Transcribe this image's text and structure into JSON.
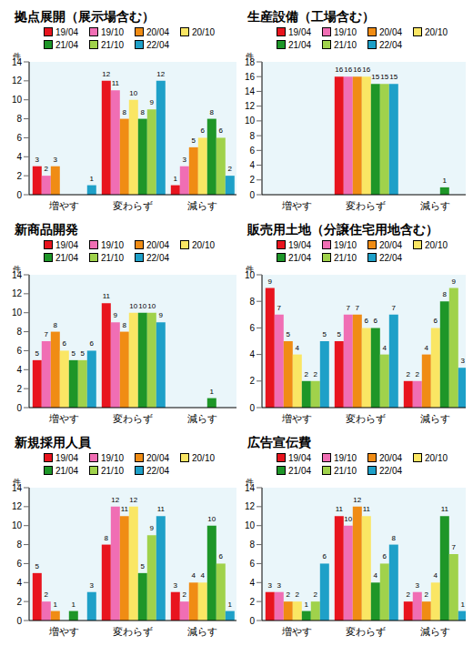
{
  "chart_data": [
    {
      "type": "bar",
      "title": "拠点展開（展示場含む）",
      "ylabel": "件",
      "categories": [
        "増やす",
        "変わらず",
        "減らす"
      ],
      "ylim": [
        0,
        14
      ],
      "yticks": [
        0,
        2,
        4,
        6,
        8,
        10,
        12,
        14
      ],
      "grid": false,
      "data_labels": true,
      "series": [
        {
          "name": "19/04",
          "color": "#e8141e",
          "values": [
            3,
            12,
            1
          ]
        },
        {
          "name": "19/10",
          "color": "#f06eb4",
          "values": [
            2,
            11,
            3
          ]
        },
        {
          "name": "20/04",
          "color": "#f08c14",
          "values": [
            3,
            8,
            5
          ]
        },
        {
          "name": "20/10",
          "color": "#fae664",
          "values": [
            0,
            10,
            6
          ]
        },
        {
          "name": "21/04",
          "color": "#1e9628",
          "values": [
            0,
            8,
            8
          ]
        },
        {
          "name": "21/10",
          "color": "#a0d24b",
          "values": [
            0,
            9,
            6
          ]
        },
        {
          "name": "22/04",
          "color": "#1ea0c8",
          "values": [
            1,
            12,
            2
          ]
        }
      ]
    },
    {
      "type": "bar",
      "title": "生産設備（工場含む）",
      "ylabel": "件",
      "categories": [
        "増やす",
        "変わらず",
        "減らす"
      ],
      "ylim": [
        0,
        18
      ],
      "yticks": [
        0,
        2,
        4,
        6,
        8,
        10,
        12,
        14,
        16,
        18
      ],
      "grid": false,
      "data_labels": true,
      "series": [
        {
          "name": "19/04",
          "color": "#e8141e",
          "values": [
            0,
            16,
            0
          ]
        },
        {
          "name": "19/10",
          "color": "#f06eb4",
          "values": [
            0,
            16,
            0
          ]
        },
        {
          "name": "20/04",
          "color": "#f08c14",
          "values": [
            0,
            16,
            0
          ]
        },
        {
          "name": "20/10",
          "color": "#fae664",
          "values": [
            0,
            16,
            0
          ]
        },
        {
          "name": "21/04",
          "color": "#1e9628",
          "values": [
            0,
            15,
            1
          ]
        },
        {
          "name": "21/10",
          "color": "#a0d24b",
          "values": [
            0,
            15,
            0
          ]
        },
        {
          "name": "22/04",
          "color": "#1ea0c8",
          "values": [
            0,
            15,
            0
          ]
        }
      ]
    },
    {
      "type": "bar",
      "title": "新商品開発",
      "ylabel": "件",
      "categories": [
        "増やす",
        "変わらず",
        "減らす"
      ],
      "ylim": [
        0,
        14
      ],
      "yticks": [
        0,
        2,
        4,
        6,
        8,
        10,
        12,
        14
      ],
      "grid": false,
      "data_labels": true,
      "series": [
        {
          "name": "19/04",
          "color": "#e8141e",
          "values": [
            5,
            11,
            0
          ]
        },
        {
          "name": "19/10",
          "color": "#f06eb4",
          "values": [
            7,
            9,
            0
          ]
        },
        {
          "name": "20/04",
          "color": "#f08c14",
          "values": [
            8,
            8,
            0
          ]
        },
        {
          "name": "20/10",
          "color": "#fae664",
          "values": [
            6,
            10,
            0
          ]
        },
        {
          "name": "21/04",
          "color": "#1e9628",
          "values": [
            5,
            10,
            1
          ]
        },
        {
          "name": "21/10",
          "color": "#a0d24b",
          "values": [
            5,
            10,
            0
          ]
        },
        {
          "name": "22/04",
          "color": "#1ea0c8",
          "values": [
            6,
            9,
            0
          ]
        }
      ]
    },
    {
      "type": "bar",
      "title": "販売用土地（分譲住宅用地含む）",
      "ylabel": "件",
      "categories": [
        "増やす",
        "変わらず",
        "減らす"
      ],
      "ylim": [
        0,
        10
      ],
      "yticks": [
        0,
        2,
        4,
        6,
        8,
        10
      ],
      "grid": false,
      "data_labels": true,
      "series": [
        {
          "name": "19/04",
          "color": "#e8141e",
          "values": [
            9,
            5,
            2
          ]
        },
        {
          "name": "19/10",
          "color": "#f06eb4",
          "values": [
            7,
            7,
            2
          ]
        },
        {
          "name": "20/04",
          "color": "#f08c14",
          "values": [
            5,
            7,
            4
          ]
        },
        {
          "name": "20/10",
          "color": "#fae664",
          "values": [
            4,
            6,
            6
          ]
        },
        {
          "name": "21/04",
          "color": "#1e9628",
          "values": [
            2,
            6,
            8
          ]
        },
        {
          "name": "21/10",
          "color": "#a0d24b",
          "values": [
            2,
            4,
            9
          ]
        },
        {
          "name": "22/04",
          "color": "#1ea0c8",
          "values": [
            5,
            7,
            3
          ]
        }
      ]
    },
    {
      "type": "bar",
      "title": "新規採用人員",
      "ylabel": "件",
      "categories": [
        "増やす",
        "変わらず",
        "減らす"
      ],
      "ylim": [
        0,
        14
      ],
      "yticks": [
        0,
        2,
        4,
        6,
        8,
        10,
        12,
        14
      ],
      "grid": false,
      "data_labels": true,
      "series": [
        {
          "name": "19/04",
          "color": "#e8141e",
          "values": [
            5,
            8,
            3
          ]
        },
        {
          "name": "19/10",
          "color": "#f06eb4",
          "values": [
            2,
            12,
            2
          ]
        },
        {
          "name": "20/04",
          "color": "#f08c14",
          "values": [
            1,
            11,
            4
          ]
        },
        {
          "name": "20/10",
          "color": "#fae664",
          "values": [
            0,
            12,
            4
          ]
        },
        {
          "name": "21/04",
          "color": "#1e9628",
          "values": [
            1,
            5,
            10
          ]
        },
        {
          "name": "21/10",
          "color": "#a0d24b",
          "values": [
            0,
            9,
            6
          ]
        },
        {
          "name": "22/04",
          "color": "#1ea0c8",
          "values": [
            3,
            11,
            1
          ]
        }
      ]
    },
    {
      "type": "bar",
      "title": "広告宣伝費",
      "ylabel": "件",
      "categories": [
        "増やす",
        "変わらず",
        "減らす"
      ],
      "ylim": [
        0,
        14
      ],
      "yticks": [
        0,
        2,
        4,
        6,
        8,
        10,
        12,
        14
      ],
      "grid": false,
      "data_labels": true,
      "series": [
        {
          "name": "19/04",
          "color": "#e8141e",
          "values": [
            3,
            11,
            2
          ]
        },
        {
          "name": "19/10",
          "color": "#f06eb4",
          "values": [
            3,
            10,
            3
          ]
        },
        {
          "name": "20/04",
          "color": "#f08c14",
          "values": [
            2,
            12,
            2
          ]
        },
        {
          "name": "20/10",
          "color": "#fae664",
          "values": [
            2,
            11,
            4
          ]
        },
        {
          "name": "21/04",
          "color": "#1e9628",
          "values": [
            1,
            4,
            11
          ]
        },
        {
          "name": "21/10",
          "color": "#a0d24b",
          "values": [
            2,
            6,
            7
          ]
        },
        {
          "name": "22/04",
          "color": "#1ea0c8",
          "values": [
            6,
            8,
            1
          ]
        }
      ]
    }
  ]
}
